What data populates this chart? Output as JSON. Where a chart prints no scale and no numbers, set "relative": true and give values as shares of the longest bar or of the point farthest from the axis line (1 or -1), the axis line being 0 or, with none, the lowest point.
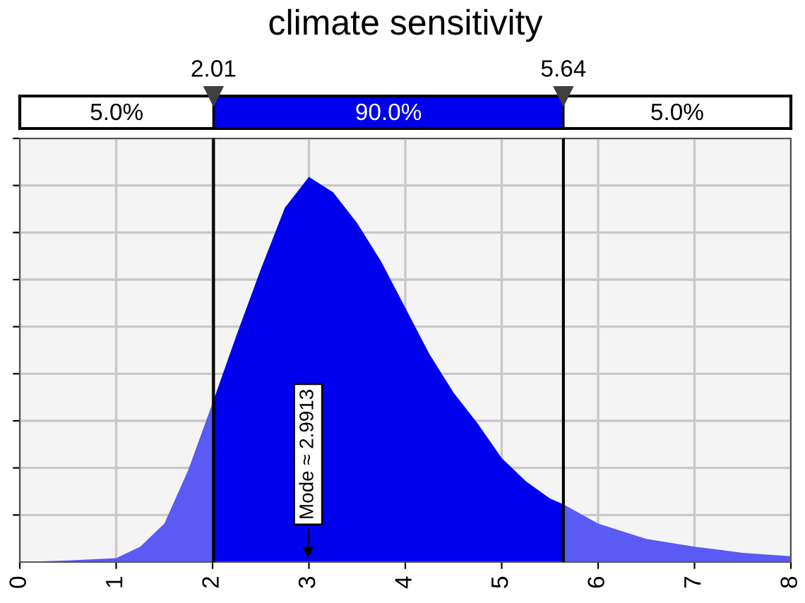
{
  "chart_data": {
    "type": "area",
    "title": "climate sensitivity",
    "relative": true,
    "xlim": [
      0,
      8
    ],
    "xticks": [
      0,
      1,
      2,
      3,
      4,
      5,
      6,
      7,
      8
    ],
    "grid": true,
    "series": [
      {
        "color": "#5a5af5",
        "x": [
          0,
          0.5,
          1,
          1.25,
          1.5,
          1.75,
          2.01
        ],
        "values": [
          0,
          0.004,
          0.01,
          0.04,
          0.1,
          0.24,
          0.42
        ]
      },
      {
        "color": "#0000ee",
        "x": [
          2.01,
          2.25,
          2.5,
          2.75,
          3.0,
          3.25,
          3.5,
          3.75,
          4.0,
          4.25,
          4.5,
          4.75,
          5.0,
          5.25,
          5.5,
          5.64
        ],
        "values": [
          0.42,
          0.59,
          0.76,
          0.92,
          1.0,
          0.96,
          0.88,
          0.78,
          0.66,
          0.54,
          0.44,
          0.36,
          0.27,
          0.21,
          0.165,
          0.15
        ]
      },
      {
        "color": "#5a5af5",
        "x": [
          5.64,
          6.0,
          6.5,
          7.0,
          7.5,
          8.0
        ],
        "values": [
          0.15,
          0.1,
          0.06,
          0.04,
          0.024,
          0.015
        ]
      }
    ],
    "ref_lines": [
      {
        "axis": "x",
        "value": 2.01,
        "label": "2.01",
        "color": "#000000"
      },
      {
        "axis": "x",
        "value": 5.64,
        "label": "5.64",
        "color": "#000000"
      }
    ],
    "annotations": [
      "5.0%",
      "90.0%",
      "5.0%",
      {
        "text": "Mode ≈ 2.9913",
        "x": 2.9913,
        "y": 0
      }
    ]
  }
}
